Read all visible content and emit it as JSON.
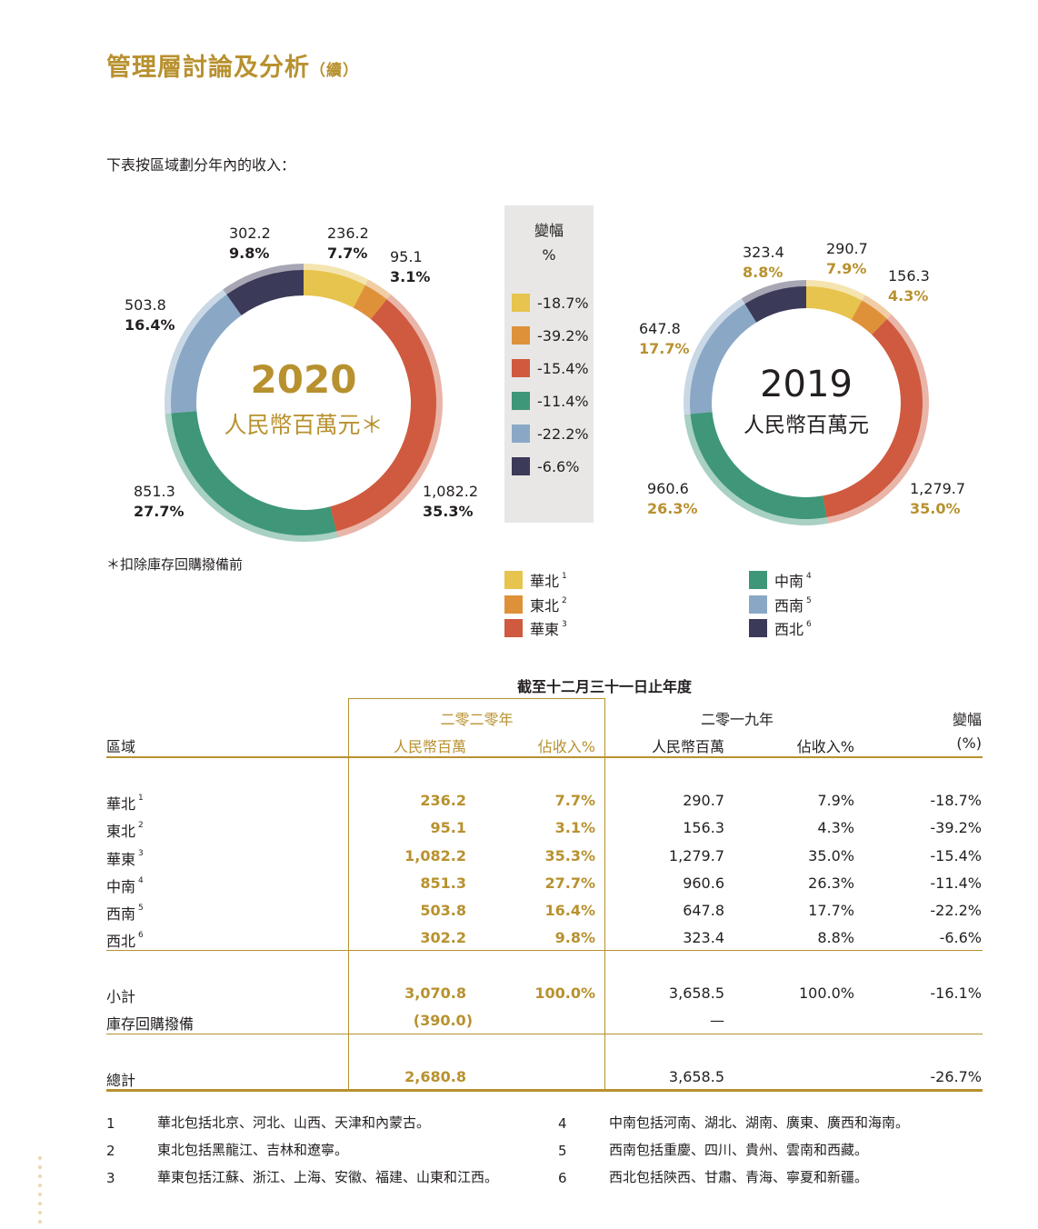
{
  "heading": {
    "title": "管理層討論及分析",
    "suffix": "（續）"
  },
  "intro": "下表按區域劃分年內的收入：",
  "chart_data": [
    {
      "type": "pie",
      "title": "2020",
      "subtitle": "人民幣百萬元＊",
      "categories": [
        "華北",
        "東北",
        "華東",
        "中南",
        "西南",
        "西北"
      ],
      "values": [
        236.2,
        95.1,
        1082.2,
        851.3,
        503.8,
        302.2
      ],
      "value_labels": [
        "236.2",
        "95.1",
        "1,082.2",
        "851.3",
        "503.8",
        "302.2"
      ],
      "percent_labels": [
        "7.7%",
        "3.1%",
        "35.3%",
        "27.7%",
        "16.4%",
        "9.8%"
      ]
    },
    {
      "type": "pie",
      "title": "2019",
      "subtitle": "人民幣百萬元",
      "categories": [
        "華北",
        "東北",
        "華東",
        "中南",
        "西南",
        "西北"
      ],
      "values": [
        290.7,
        156.3,
        1279.7,
        960.6,
        647.8,
        323.4
      ],
      "value_labels": [
        "290.7",
        "156.3",
        "1,279.7",
        "960.6",
        "647.8",
        "323.4"
      ],
      "percent_labels": [
        "7.9%",
        "4.3%",
        "35.0%",
        "26.3%",
        "17.7%",
        "8.8%"
      ]
    }
  ],
  "colors": [
    "#e6c44d",
    "#df913a",
    "#cf5a3f",
    "#3f9679",
    "#8aa8c6",
    "#3b3a58"
  ],
  "change_panel": {
    "title": "變幅",
    "unit": "%",
    "items": [
      "-18.7%",
      "-39.2%",
      "-15.4%",
      "-11.4%",
      "-22.2%",
      "-6.6%"
    ]
  },
  "footnote_star": "＊扣除庫存回購撥備前",
  "legend": [
    {
      "label": "華北",
      "ref": "1"
    },
    {
      "label": "東北",
      "ref": "2"
    },
    {
      "label": "華東",
      "ref": "3"
    },
    {
      "label": "中南",
      "ref": "4"
    },
    {
      "label": "西南",
      "ref": "5"
    },
    {
      "label": "西北",
      "ref": "6"
    }
  ],
  "table": {
    "title": "截至十二月三十一日止年度",
    "year2020": "二零二零年",
    "year2019": "二零一九年",
    "change": "變幅",
    "region": "區域",
    "rmb": "人民幣百萬",
    "pct": "佔收入%",
    "change_unit": "(%)",
    "rows": [
      {
        "region": "華北",
        "ref": "1",
        "v2020": "236.2",
        "p2020": "7.7%",
        "v2019": "290.7",
        "p2019": "7.9%",
        "chg": "-18.7%"
      },
      {
        "region": "東北",
        "ref": "2",
        "v2020": "95.1",
        "p2020": "3.1%",
        "v2019": "156.3",
        "p2019": "4.3%",
        "chg": "-39.2%"
      },
      {
        "region": "華東",
        "ref": "3",
        "v2020": "1,082.2",
        "p2020": "35.3%",
        "v2019": "1,279.7",
        "p2019": "35.0%",
        "chg": "-15.4%"
      },
      {
        "region": "中南",
        "ref": "4",
        "v2020": "851.3",
        "p2020": "27.7%",
        "v2019": "960.6",
        "p2019": "26.3%",
        "chg": "-11.4%"
      },
      {
        "region": "西南",
        "ref": "5",
        "v2020": "503.8",
        "p2020": "16.4%",
        "v2019": "647.8",
        "p2019": "17.7%",
        "chg": "-22.2%"
      },
      {
        "region": "西北",
        "ref": "6",
        "v2020": "302.2",
        "p2020": "9.8%",
        "v2019": "323.4",
        "p2019": "8.8%",
        "chg": "-6.6%"
      }
    ],
    "subtotal": {
      "label": "小計",
      "v2020": "3,070.8",
      "p2020": "100.0%",
      "v2019": "3,658.5",
      "p2019": "100.0%",
      "chg": "-16.1%"
    },
    "provision": {
      "label": "庫存回購撥備",
      "v2020": "(390.0)",
      "v2019": "—"
    },
    "total": {
      "label": "總計",
      "v2020": "2,680.8",
      "v2019": "3,658.5",
      "chg": "-26.7%"
    }
  },
  "footnotes": [
    {
      "n": "1",
      "text": "華北包括北京、河北、山西、天津和內蒙古。"
    },
    {
      "n": "2",
      "text": "東北包括黑龍江、吉林和遼寧。"
    },
    {
      "n": "3",
      "text": "華東包括江蘇、浙江、上海、安徽、福建、山東和江西。"
    },
    {
      "n": "4",
      "text": "中南包括河南、湖北、湖南、廣東、廣西和海南。"
    },
    {
      "n": "5",
      "text": "西南包括重慶、四川、貴州、雲南和西藏。"
    },
    {
      "n": "6",
      "text": "西北包括陝西、甘肅、青海、寧夏和新疆。"
    }
  ]
}
